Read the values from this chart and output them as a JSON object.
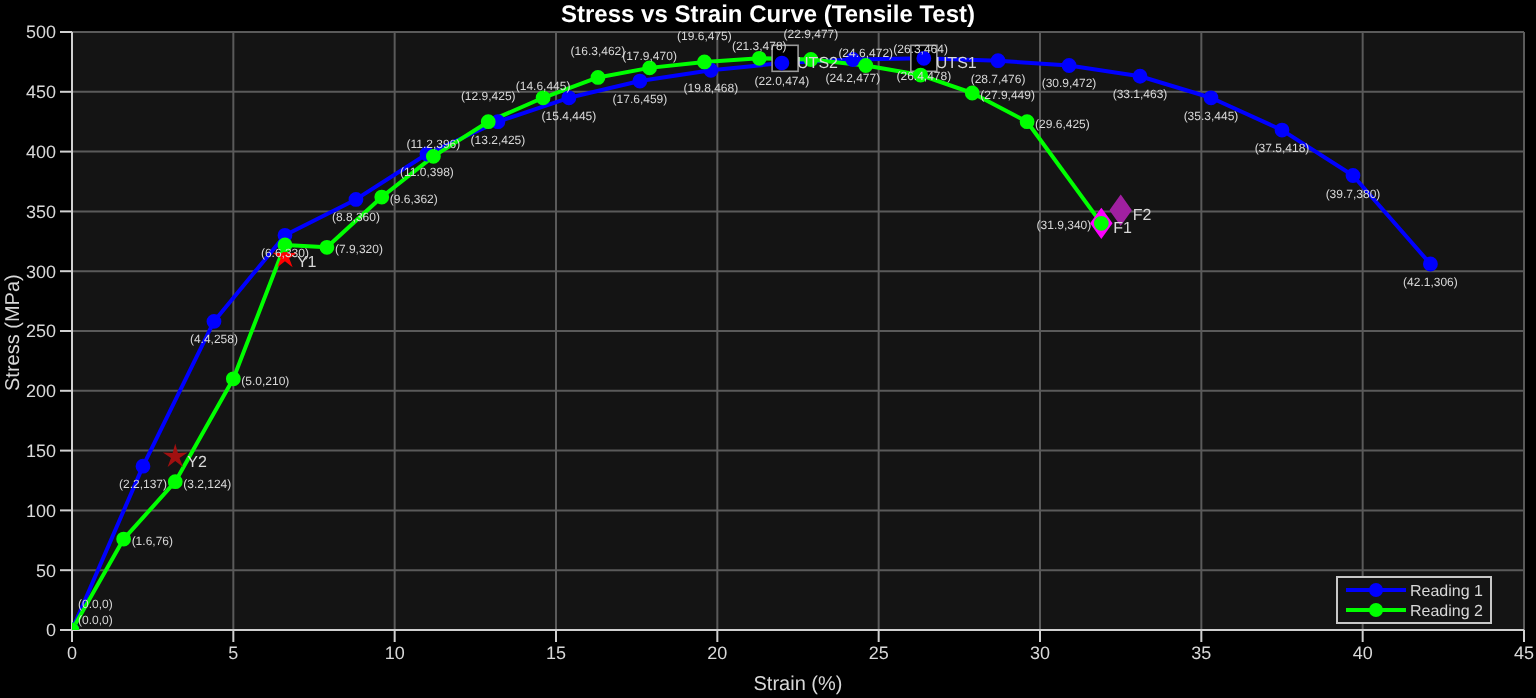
{
  "chart_data": {
    "type": "line",
    "title": "Stress vs Strain Curve (Tensile Test)",
    "xlabel": "Strain (%)",
    "ylabel": "Stress (MPa)",
    "xlim": [
      0,
      45
    ],
    "xticks": [
      0,
      5,
      10,
      15,
      20,
      25,
      30,
      35,
      40,
      45
    ],
    "ylim": [
      0,
      500
    ],
    "yticks": [
      0,
      50,
      100,
      150,
      200,
      250,
      300,
      350,
      400,
      450,
      500
    ],
    "grid": true,
    "legend": "bottom right",
    "marker": "circle",
    "line_style": "solid",
    "series": [
      {
        "name": "Reading 1",
        "color": "#0000ff",
        "x": [
          0,
          2.2,
          4.4,
          6.6,
          8.8,
          11.0,
          13.2,
          15.4,
          17.6,
          19.8,
          22.0,
          24.2,
          26.4,
          28.7,
          30.9,
          33.1,
          35.3,
          37.5,
          39.7,
          42.1
        ],
        "values": [
          0,
          137,
          258,
          330,
          360,
          398,
          425,
          445,
          459,
          468,
          474,
          477,
          478,
          476,
          472,
          463,
          445,
          418,
          380,
          306
        ],
        "value_labels": [
          "(0.0,0)",
          "(2.2,137)",
          "(4.4,258)",
          "(6.6,330)",
          "(8.8,360)",
          "(11.0,398)",
          "(13.2,425)",
          "(15.4,445)",
          "(17.6,459)",
          "(19.8,468)",
          "(22.0,474)",
          "(24.2,477)",
          "(26.4,478)",
          "(28.7,476)",
          "(30.9,472)",
          "(33.1,463)",
          "(35.3,445)",
          "(37.5,418)",
          "(39.7,380)",
          "(42.1,306)"
        ]
      },
      {
        "name": "Reading 2",
        "color": "#00ff00",
        "x": [
          0,
          1.6,
          3.2,
          5.0,
          6.6,
          7.9,
          9.6,
          11.2,
          12.9,
          14.6,
          16.3,
          17.9,
          19.6,
          21.3,
          22.9,
          24.6,
          26.3,
          27.9,
          29.6,
          31.9
        ],
        "values": [
          0,
          76,
          124,
          210,
          322,
          320,
          362,
          396,
          425,
          445,
          462,
          470,
          475,
          478,
          477,
          472,
          464,
          449,
          425,
          340
        ],
        "value_labels": [
          "(0.0,0)",
          "(1.6,76)",
          "(3.2,124)",
          "(5.0,210)",
          null,
          "(7.9,320)",
          "(9.6,362)",
          "(11.2,396)",
          "(12.9,425)",
          "(14.6,445)",
          "(16.3,462)",
          "(17.9,470)",
          "(19.6,475)",
          "(21.3,478)",
          "(22.9,477)",
          "(24.6,472)",
          "(26.3,464)",
          "(27.9,449)",
          "(29.6,425)",
          "(31.9,340)"
        ]
      },
      {
        "name": "Y1",
        "type": "scatter",
        "marker": "star",
        "color": "#ff0000",
        "x": [
          6.6
        ],
        "values": [
          312
        ]
      },
      {
        "name": "Y2",
        "type": "scatter",
        "marker": "star",
        "color": "#a01010",
        "x": [
          3.2
        ],
        "values": [
          145
        ]
      },
      {
        "name": "UTS1",
        "type": "scatter",
        "marker": "square",
        "color": "#000000",
        "x": [
          26.4
        ],
        "values": [
          478
        ]
      },
      {
        "name": "UTS2",
        "type": "scatter",
        "marker": "square",
        "color": "#000000",
        "x": [
          22.1
        ],
        "values": [
          478
        ]
      },
      {
        "name": "F1",
        "type": "scatter",
        "marker": "diamond",
        "color": "#ff00ff",
        "x": [
          31.9
        ],
        "values": [
          340
        ]
      },
      {
        "name": "F2",
        "type": "scatter",
        "marker": "diamond",
        "color": "#a020a0",
        "x": [
          32.5
        ],
        "values": [
          351
        ]
      }
    ]
  }
}
